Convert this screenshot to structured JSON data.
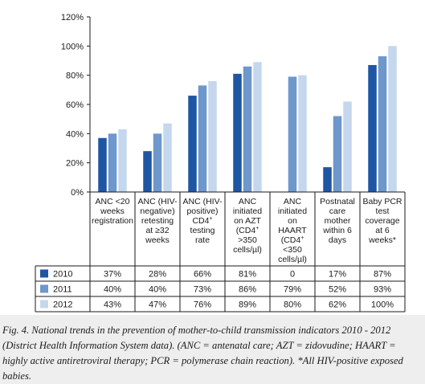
{
  "chart_data": {
    "type": "bar",
    "title": "",
    "xlabel": "",
    "ylabel": "",
    "ylim": [
      0,
      120
    ],
    "yticks": [
      "0%",
      "20%",
      "40%",
      "60%",
      "80%",
      "100%",
      "120%"
    ],
    "grid": false,
    "legend": "table-left",
    "categories": [
      {
        "lines": [
          "ANC <20",
          "weeks",
          "registration"
        ]
      },
      {
        "lines": [
          "ANC (HIV-",
          "negative)",
          "retesting",
          "at ≥32",
          "weeks"
        ]
      },
      {
        "lines": [
          "ANC (HIV-",
          "positive)",
          "CD4⁺",
          "testing",
          "rate"
        ]
      },
      {
        "lines": [
          "ANC",
          "initiated",
          "on AZT",
          "(CD4⁺",
          ">350",
          "cells/µl)"
        ]
      },
      {
        "lines": [
          "ANC",
          "initiated",
          "on",
          "HAART",
          "(CD4⁺",
          "<350",
          "cells/µl)"
        ]
      },
      {
        "lines": [
          "Postnatal",
          "care",
          "mother",
          "within 6",
          "days"
        ]
      },
      {
        "lines": [
          "Baby PCR",
          "test",
          "coverage",
          "at 6",
          "weeks*"
        ]
      }
    ],
    "series": [
      {
        "name": "2010",
        "color": "#1f56a4",
        "values": [
          37,
          28,
          66,
          81,
          0,
          17,
          87
        ],
        "labels": [
          "37%",
          "28%",
          "66%",
          "81%",
          "0",
          "17%",
          "87%"
        ]
      },
      {
        "name": "2011",
        "color": "#6e97cc",
        "values": [
          40,
          40,
          73,
          86,
          79,
          52,
          93
        ],
        "labels": [
          "40%",
          "40%",
          "73%",
          "86%",
          "79%",
          "52%",
          "93%"
        ]
      },
      {
        "name": "2012",
        "color": "#c5d7ec",
        "values": [
          43,
          47,
          76,
          89,
          80,
          62,
          100
        ],
        "labels": [
          "43%",
          "47%",
          "76%",
          "89%",
          "80%",
          "62%",
          "100%"
        ]
      }
    ]
  },
  "caption": "Fig. 4. National trends in the prevention of mother-to-child transmission indicators 2010 - 2012 (District Health Information System data). (ANC = antenatal care; AZT = zidovudine; HAART = highly active antiretroviral therapy; PCR = polymerase chain reaction). *All HIV-positive exposed babies."
}
